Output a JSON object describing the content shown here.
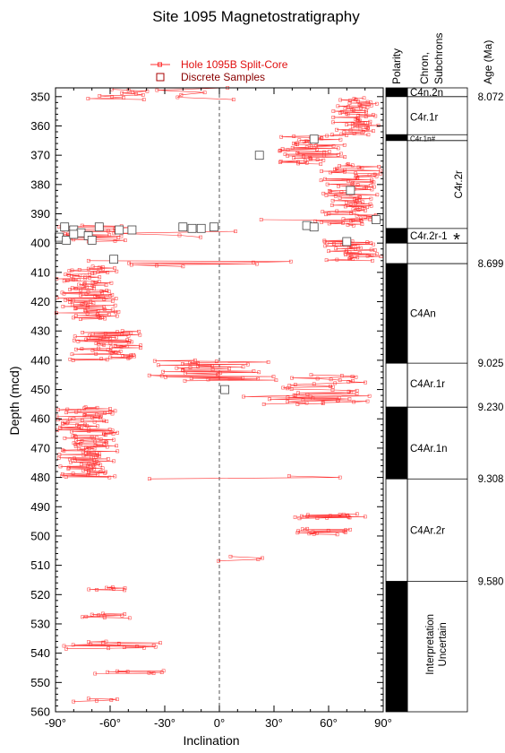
{
  "chart_data": {
    "type": "scatter",
    "title": "Site 1095 Magnetostratigraphy",
    "xlabel": "Inclination",
    "ylabel": "Depth (mcd)",
    "xlim": [
      -90,
      90
    ],
    "ylim": [
      347,
      560
    ],
    "x_ticks": [
      "-90°",
      "-60°",
      "-30°",
      "0°",
      "30°",
      "60°",
      "90°"
    ],
    "x_tick_values": [
      -90,
      -60,
      -30,
      0,
      30,
      60,
      90
    ],
    "y_ticks": [
      "350",
      "360",
      "370",
      "380",
      "390",
      "400",
      "410",
      "420",
      "430",
      "440",
      "450",
      "460",
      "470",
      "480",
      "490",
      "500",
      "510",
      "520",
      "530",
      "540",
      "550",
      "560"
    ],
    "y_tick_values": [
      350,
      360,
      370,
      380,
      390,
      400,
      410,
      420,
      430,
      440,
      450,
      460,
      470,
      480,
      490,
      500,
      510,
      520,
      530,
      540,
      550,
      560
    ],
    "series_colors": {
      "split_core": "#ff3030",
      "discrete": "#cc0000"
    },
    "legend": [
      {
        "label": "Hole 1095B Split-Core",
        "marker": "small-square-line"
      },
      {
        "label": "Discrete Samples",
        "marker": "large-open-square"
      }
    ],
    "split_core_segments": [
      {
        "d0": 347.5,
        "d1": 351,
        "xmin": -84,
        "xmax": -30,
        "n": 12
      },
      {
        "d0": 347,
        "d1": 351,
        "xmin": -40,
        "xmax": 12,
        "n": 6
      },
      {
        "d0": 350.5,
        "d1": 363,
        "xmin": 62,
        "xmax": 90,
        "n": 60
      },
      {
        "d0": 363,
        "d1": 373,
        "xmin": 28,
        "xmax": 70,
        "n": 55
      },
      {
        "d0": 373,
        "d1": 394,
        "xmin": 55,
        "xmax": 90,
        "n": 95
      },
      {
        "d0": 392,
        "d1": 392.5,
        "xmin": -45,
        "xmax": 80,
        "n": 3
      },
      {
        "d0": 394,
        "d1": 399.5,
        "xmin": -90,
        "xmax": -40,
        "n": 25
      },
      {
        "d0": 396,
        "d1": 398,
        "xmin": -60,
        "xmax": 70,
        "n": 4
      },
      {
        "d0": 399,
        "d1": 406,
        "xmin": 55,
        "xmax": 90,
        "n": 40
      },
      {
        "d0": 406,
        "d1": 408,
        "xmin": -85,
        "xmax": 80,
        "n": 8
      },
      {
        "d0": 408,
        "d1": 426,
        "xmin": -90,
        "xmax": -55,
        "n": 100
      },
      {
        "d0": 430,
        "d1": 440,
        "xmin": -82,
        "xmax": -40,
        "n": 60
      },
      {
        "d0": 440,
        "d1": 447,
        "xmin": -45,
        "xmax": 40,
        "n": 35
      },
      {
        "d0": 445,
        "d1": 455,
        "xmin": 35,
        "xmax": 90,
        "n": 40
      },
      {
        "d0": 452,
        "d1": 455,
        "xmin": 10,
        "xmax": 80,
        "n": 8
      },
      {
        "d0": 456,
        "d1": 480,
        "xmin": -90,
        "xmax": -55,
        "n": 130
      },
      {
        "d0": 479.5,
        "d1": 480.5,
        "xmin": -80,
        "xmax": 80,
        "n": 3
      },
      {
        "d0": 492.5,
        "d1": 494,
        "xmin": 40,
        "xmax": 88,
        "n": 16
      },
      {
        "d0": 497.5,
        "d1": 499.5,
        "xmin": 40,
        "xmax": 80,
        "n": 14
      },
      {
        "d0": 507,
        "d1": 508.5,
        "xmin": -20,
        "xmax": 25,
        "n": 4
      },
      {
        "d0": 517.5,
        "d1": 518.5,
        "xmin": -78,
        "xmax": -42,
        "n": 8
      },
      {
        "d0": 526.5,
        "d1": 528,
        "xmin": -82,
        "xmax": -48,
        "n": 10
      },
      {
        "d0": 536,
        "d1": 538.5,
        "xmin": -90,
        "xmax": -30,
        "n": 16
      },
      {
        "d0": 546,
        "d1": 547,
        "xmin": -70,
        "xmax": -10,
        "n": 8
      },
      {
        "d0": 555.5,
        "d1": 556.5,
        "xmin": -82,
        "xmax": -55,
        "n": 5
      }
    ],
    "discrete_samples": [
      {
        "x": 52,
        "y": 364.5
      },
      {
        "x": 22,
        "y": 370
      },
      {
        "x": 72,
        "y": 382
      },
      {
        "x": 86,
        "y": 392
      },
      {
        "x": -85,
        "y": 394.5
      },
      {
        "x": -80,
        "y": 395.5
      },
      {
        "x": -76,
        "y": 396.5
      },
      {
        "x": -72,
        "y": 397.5
      },
      {
        "x": -66,
        "y": 394.5
      },
      {
        "x": -55,
        "y": 395.5
      },
      {
        "x": -48,
        "y": 395.5
      },
      {
        "x": -20,
        "y": 394.5
      },
      {
        "x": -15,
        "y": 395
      },
      {
        "x": -10,
        "y": 395
      },
      {
        "x": -3,
        "y": 394.5
      },
      {
        "x": -88,
        "y": 398
      },
      {
        "x": -84,
        "y": 399
      },
      {
        "x": -80,
        "y": 397
      },
      {
        "x": -70,
        "y": 399
      },
      {
        "x": 48,
        "y": 394
      },
      {
        "x": 52,
        "y": 394.5
      },
      {
        "x": 70,
        "y": 399.5
      },
      {
        "x": -58,
        "y": 405.5
      },
      {
        "x": 3,
        "y": 450
      }
    ]
  },
  "polarity": {
    "header": "Polarity",
    "blocks": [
      {
        "top": 347,
        "bottom": 350,
        "state": "normal"
      },
      {
        "top": 350,
        "bottom": 363,
        "state": "reversed"
      },
      {
        "top": 363,
        "bottom": 365,
        "state": "normal"
      },
      {
        "top": 365,
        "bottom": 395,
        "state": "reversed"
      },
      {
        "top": 395,
        "bottom": 400,
        "state": "normal"
      },
      {
        "top": 400,
        "bottom": 407,
        "state": "reversed"
      },
      {
        "top": 407,
        "bottom": 441,
        "state": "normal"
      },
      {
        "top": 441,
        "bottom": 456,
        "state": "reversed"
      },
      {
        "top": 456,
        "bottom": 480.5,
        "state": "normal"
      },
      {
        "top": 480.5,
        "bottom": 515.5,
        "state": "reversed"
      },
      {
        "top": 515.5,
        "bottom": 560,
        "state": "normal"
      }
    ]
  },
  "chron": {
    "header_line1": "Chron,",
    "header_line2": "Subchrons",
    "labels": [
      {
        "text": "C4n.2n",
        "depth": 348.5,
        "size": "normal"
      },
      {
        "text": "C4r.1r",
        "depth": 357,
        "size": "normal"
      },
      {
        "text": "C4r.1n#",
        "depth": 364,
        "size": "small"
      },
      {
        "text": "C4r.2r-1",
        "depth": 397.5,
        "size": "normal"
      },
      {
        "text": "C4An",
        "depth": 424,
        "size": "normal"
      },
      {
        "text": "C4Ar.1r",
        "depth": 448,
        "size": "normal"
      },
      {
        "text": "C4Ar.1n",
        "depth": 470,
        "size": "normal"
      },
      {
        "text": "C4Ar.2r",
        "depth": 498,
        "size": "normal"
      }
    ],
    "c4r2r_label": "C4r.2r",
    "asterisk": "*",
    "uncertain_line1": "Interpretation",
    "uncertain_line2": "Uncertain",
    "boundaries": [
      350,
      363,
      365,
      395,
      400,
      407,
      441,
      456,
      480.5,
      515.5
    ]
  },
  "age": {
    "header": "Age (Ma)",
    "labels": [
      {
        "text": "8.072",
        "depth": 350
      },
      {
        "text": "8.699",
        "depth": 407
      },
      {
        "text": "9.025",
        "depth": 441
      },
      {
        "text": "9.230",
        "depth": 456
      },
      {
        "text": "9.308",
        "depth": 480.5
      },
      {
        "text": "9.580",
        "depth": 515.5
      }
    ]
  }
}
